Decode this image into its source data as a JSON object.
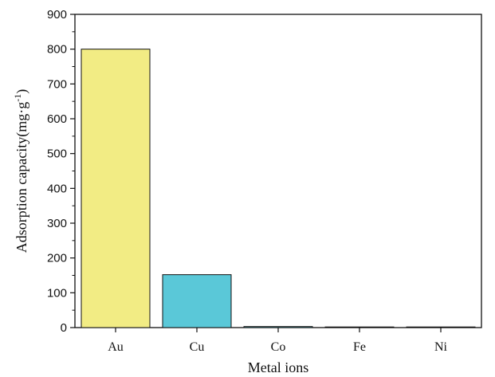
{
  "chart_data": {
    "type": "bar",
    "categories": [
      "Au",
      "Cu",
      "Co",
      "Fe",
      "Ni"
    ],
    "values": [
      800,
      152,
      3,
      1,
      1
    ],
    "xlabel": "Metal ions",
    "ylabel": {
      "prefix": "Adsorption capacity(mg·g",
      "superscript": "-1",
      "suffix": ")"
    },
    "ylim": [
      0,
      900
    ],
    "yticks": [
      0,
      100,
      200,
      300,
      400,
      500,
      600,
      700,
      800,
      900
    ],
    "grid": false,
    "legend": "none",
    "colors": [
      "#f2ec84",
      "#5ac8d8",
      "#5ac8d8",
      "#5ac8d8",
      "#5ac8d8"
    ],
    "edge_color": "#111111"
  }
}
